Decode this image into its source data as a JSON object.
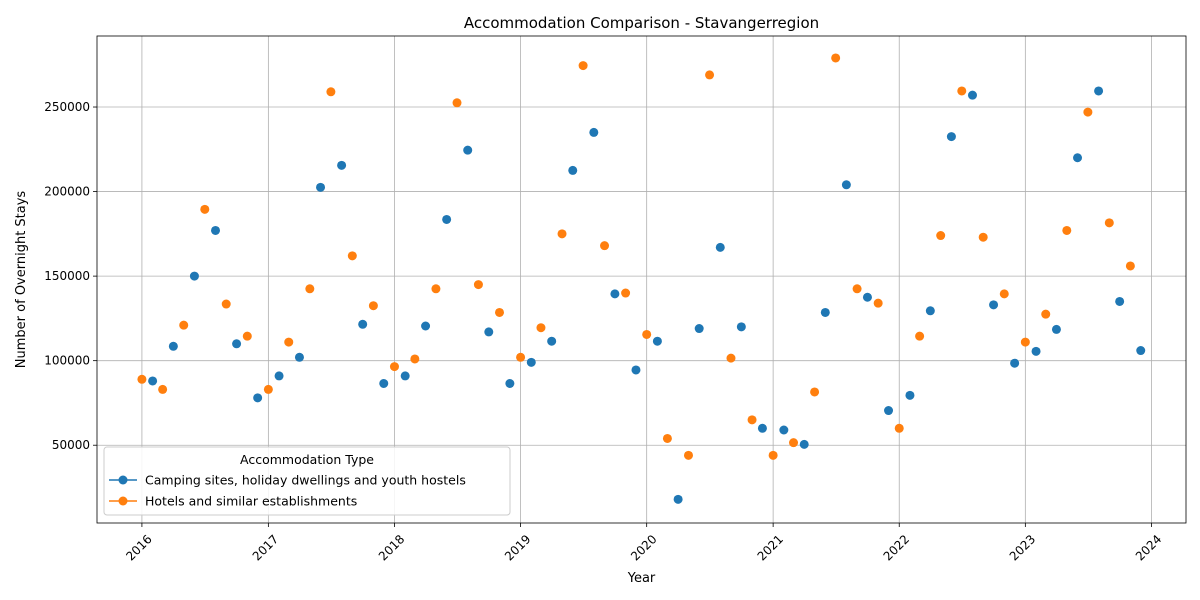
{
  "chart_data": {
    "type": "scatter",
    "title": "Accommodation Comparison - Stavangerregion",
    "xlabel": "Year",
    "ylabel": "Number of Overnight Stays",
    "xlim": [
      "2015-08-24",
      "2024-04-10"
    ],
    "ylim": [
      4000,
      292000
    ],
    "x_ticks": [
      "2016",
      "2017",
      "2018",
      "2019",
      "2020",
      "2021",
      "2022",
      "2023",
      "2024"
    ],
    "y_ticks": [
      50000,
      100000,
      150000,
      200000,
      250000
    ],
    "grid": true,
    "legend": {
      "title": "Accommodation Type",
      "position": "lower-left"
    },
    "series": [
      {
        "name": "Camping sites, holiday dwellings and youth hostels",
        "color": "#1f77b4",
        "points": [
          [
            "2016-02-01",
            88000
          ],
          [
            "2016-04-01",
            108500
          ],
          [
            "2016-06-01",
            150000
          ],
          [
            "2016-08-01",
            177000
          ],
          [
            "2016-10-01",
            110000
          ],
          [
            "2016-12-01",
            78000
          ],
          [
            "2017-02-01",
            91000
          ],
          [
            "2017-04-01",
            102000
          ],
          [
            "2017-06-01",
            202500
          ],
          [
            "2017-08-01",
            215500
          ],
          [
            "2017-10-01",
            121500
          ],
          [
            "2017-12-01",
            86500
          ],
          [
            "2018-02-01",
            91000
          ],
          [
            "2018-04-01",
            120500
          ],
          [
            "2018-06-01",
            183500
          ],
          [
            "2018-08-01",
            224500
          ],
          [
            "2018-10-01",
            117000
          ],
          [
            "2018-12-01",
            86500
          ],
          [
            "2019-02-01",
            99000
          ],
          [
            "2019-04-01",
            111500
          ],
          [
            "2019-06-01",
            212500
          ],
          [
            "2019-08-01",
            235000
          ],
          [
            "2019-10-01",
            139500
          ],
          [
            "2019-12-01",
            94500
          ],
          [
            "2020-02-01",
            111500
          ],
          [
            "2020-04-01",
            18000
          ],
          [
            "2020-06-01",
            119000
          ],
          [
            "2020-08-01",
            167000
          ],
          [
            "2020-10-01",
            120000
          ],
          [
            "2020-12-01",
            60000
          ],
          [
            "2021-02-01",
            59000
          ],
          [
            "2021-04-01",
            50500
          ],
          [
            "2021-06-01",
            128500
          ],
          [
            "2021-08-01",
            204000
          ],
          [
            "2021-10-01",
            137500
          ],
          [
            "2021-12-01",
            70500
          ],
          [
            "2022-02-01",
            79500
          ],
          [
            "2022-04-01",
            129500
          ],
          [
            "2022-06-01",
            232500
          ],
          [
            "2022-08-01",
            257000
          ],
          [
            "2022-10-01",
            133000
          ],
          [
            "2022-12-01",
            98500
          ],
          [
            "2023-02-01",
            105500
          ],
          [
            "2023-04-01",
            118500
          ],
          [
            "2023-06-01",
            220000
          ],
          [
            "2023-08-01",
            259500
          ],
          [
            "2023-10-01",
            135000
          ],
          [
            "2023-12-01",
            106000
          ]
        ]
      },
      {
        "name": "Hotels and similar establishments",
        "color": "#ff7f0e",
        "points": [
          [
            "2016-01-01",
            89000
          ],
          [
            "2016-03-01",
            83000
          ],
          [
            "2016-05-01",
            121000
          ],
          [
            "2016-07-01",
            189500
          ],
          [
            "2016-09-01",
            133500
          ],
          [
            "2016-11-01",
            114500
          ],
          [
            "2017-01-01",
            83000
          ],
          [
            "2017-03-01",
            111000
          ],
          [
            "2017-05-01",
            142500
          ],
          [
            "2017-07-01",
            259000
          ],
          [
            "2017-09-01",
            162000
          ],
          [
            "2017-11-01",
            132500
          ],
          [
            "2018-01-01",
            96500
          ],
          [
            "2018-03-01",
            101000
          ],
          [
            "2018-05-01",
            142500
          ],
          [
            "2018-07-01",
            252500
          ],
          [
            "2018-09-01",
            145000
          ],
          [
            "2018-11-01",
            128500
          ],
          [
            "2019-01-01",
            102000
          ],
          [
            "2019-03-01",
            119500
          ],
          [
            "2019-05-01",
            175000
          ],
          [
            "2019-07-01",
            274500
          ],
          [
            "2019-09-01",
            168000
          ],
          [
            "2019-11-01",
            140000
          ],
          [
            "2020-01-01",
            115500
          ],
          [
            "2020-03-01",
            54000
          ],
          [
            "2020-05-01",
            44000
          ],
          [
            "2020-07-01",
            269000
          ],
          [
            "2020-09-01",
            101500
          ],
          [
            "2020-11-01",
            65000
          ],
          [
            "2021-01-01",
            44000
          ],
          [
            "2021-03-01",
            51500
          ],
          [
            "2021-05-01",
            81500
          ],
          [
            "2021-07-01",
            279000
          ],
          [
            "2021-09-01",
            142500
          ],
          [
            "2021-11-01",
            134000
          ],
          [
            "2022-01-01",
            60000
          ],
          [
            "2022-03-01",
            114500
          ],
          [
            "2022-05-01",
            174000
          ],
          [
            "2022-07-01",
            259500
          ],
          [
            "2022-09-01",
            173000
          ],
          [
            "2022-11-01",
            139500
          ],
          [
            "2023-01-01",
            111000
          ],
          [
            "2023-03-01",
            127500
          ],
          [
            "2023-05-01",
            177000
          ],
          [
            "2023-07-01",
            247000
          ],
          [
            "2023-09-01",
            181500
          ],
          [
            "2023-11-01",
            156000
          ]
        ]
      }
    ]
  }
}
